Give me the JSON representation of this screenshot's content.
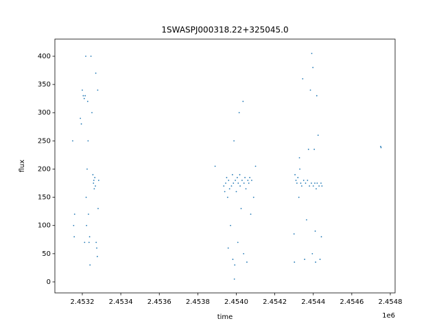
{
  "chart_data": {
    "type": "scatter",
    "title": "1SWASPJ000318.22+325045.0",
    "xlabel": "time",
    "ylabel": "flux",
    "x_offset_label": "1e6",
    "series": [
      {
        "color": "#1f77b4",
        "x": [
          2453150,
          2453155,
          2453158,
          2453160,
          2453190,
          2453195,
          2453200,
          2453205,
          2453210,
          2453212,
          2453215,
          2453218,
          2453220,
          2453222,
          2453225,
          2453228,
          2453230,
          2453232,
          2453235,
          2453238,
          2453240,
          2453245,
          2453250,
          2453255,
          2453258,
          2453260,
          2453262,
          2453265,
          2453268,
          2453270,
          2453272,
          2453275,
          2453278,
          2453280,
          2453282,
          2453285,
          2453890,
          2453935,
          2453940,
          2453945,
          2453950,
          2453955,
          2453958,
          2453960,
          2453965,
          2453970,
          2453975,
          2453980,
          2453982,
          2453985,
          2453988,
          2453990,
          2453992,
          2453995,
          2454000,
          2454005,
          2454008,
          2454010,
          2454015,
          2454018,
          2454020,
          2454025,
          2454030,
          2454035,
          2454038,
          2454040,
          2454045,
          2454050,
          2454055,
          2454060,
          2454065,
          2454070,
          2454075,
          2454080,
          2454090,
          2454100,
          2454300,
          2454302,
          2454305,
          2454310,
          2454315,
          2454320,
          2454325,
          2454328,
          2454330,
          2454335,
          2454340,
          2454345,
          2454350,
          2454355,
          2454360,
          2454365,
          2454370,
          2454375,
          2454380,
          2454385,
          2454390,
          2454392,
          2454395,
          2454398,
          2454400,
          2454405,
          2454408,
          2454410,
          2454412,
          2454415,
          2454418,
          2454420,
          2454425,
          2454430,
          2454435,
          2454440,
          2454442,
          2454445,
          2454750,
          2454752
        ],
        "values": [
          250,
          100,
          80,
          120,
          290,
          280,
          340,
          330,
          325,
          70,
          330,
          400,
          150,
          100,
          200,
          320,
          250,
          120,
          70,
          80,
          30,
          400,
          300,
          190,
          175,
          180,
          165,
          185,
          170,
          370,
          70,
          60,
          45,
          340,
          130,
          180,
          205,
          170,
          160,
          175,
          185,
          150,
          60,
          180,
          165,
          100,
          170,
          190,
          40,
          175,
          250,
          5,
          30,
          180,
          160,
          185,
          70,
          175,
          300,
          190,
          170,
          130,
          180,
          320,
          50,
          175,
          185,
          165,
          35,
          180,
          175,
          185,
          120,
          180,
          150,
          205,
          85,
          35,
          190,
          180,
          175,
          185,
          150,
          220,
          200,
          175,
          170,
          360,
          180,
          40,
          175,
          110,
          180,
          235,
          170,
          340,
          175,
          405,
          50,
          380,
          170,
          235,
          175,
          90,
          35,
          165,
          330,
          175,
          260,
          170,
          40,
          175,
          80,
          170,
          240,
          238
        ]
      }
    ],
    "xlim": [
      2453057.5,
      2454825
    ],
    "ylim": [
      -19.5,
      430.4
    ],
    "xticks": [
      {
        "value": 2453200,
        "label": "2.4532"
      },
      {
        "value": 2453400,
        "label": "2.4534"
      },
      {
        "value": 2453600,
        "label": "2.4536"
      },
      {
        "value": 2453800,
        "label": "2.4538"
      },
      {
        "value": 2454000,
        "label": "2.4540"
      },
      {
        "value": 2454200,
        "label": "2.4542"
      },
      {
        "value": 2454400,
        "label": "2.4544"
      },
      {
        "value": 2454600,
        "label": "2.4546"
      },
      {
        "value": 2454800,
        "label": "2.4548"
      }
    ],
    "yticks": [
      0,
      50,
      100,
      150,
      200,
      250,
      300,
      350,
      400
    ]
  }
}
